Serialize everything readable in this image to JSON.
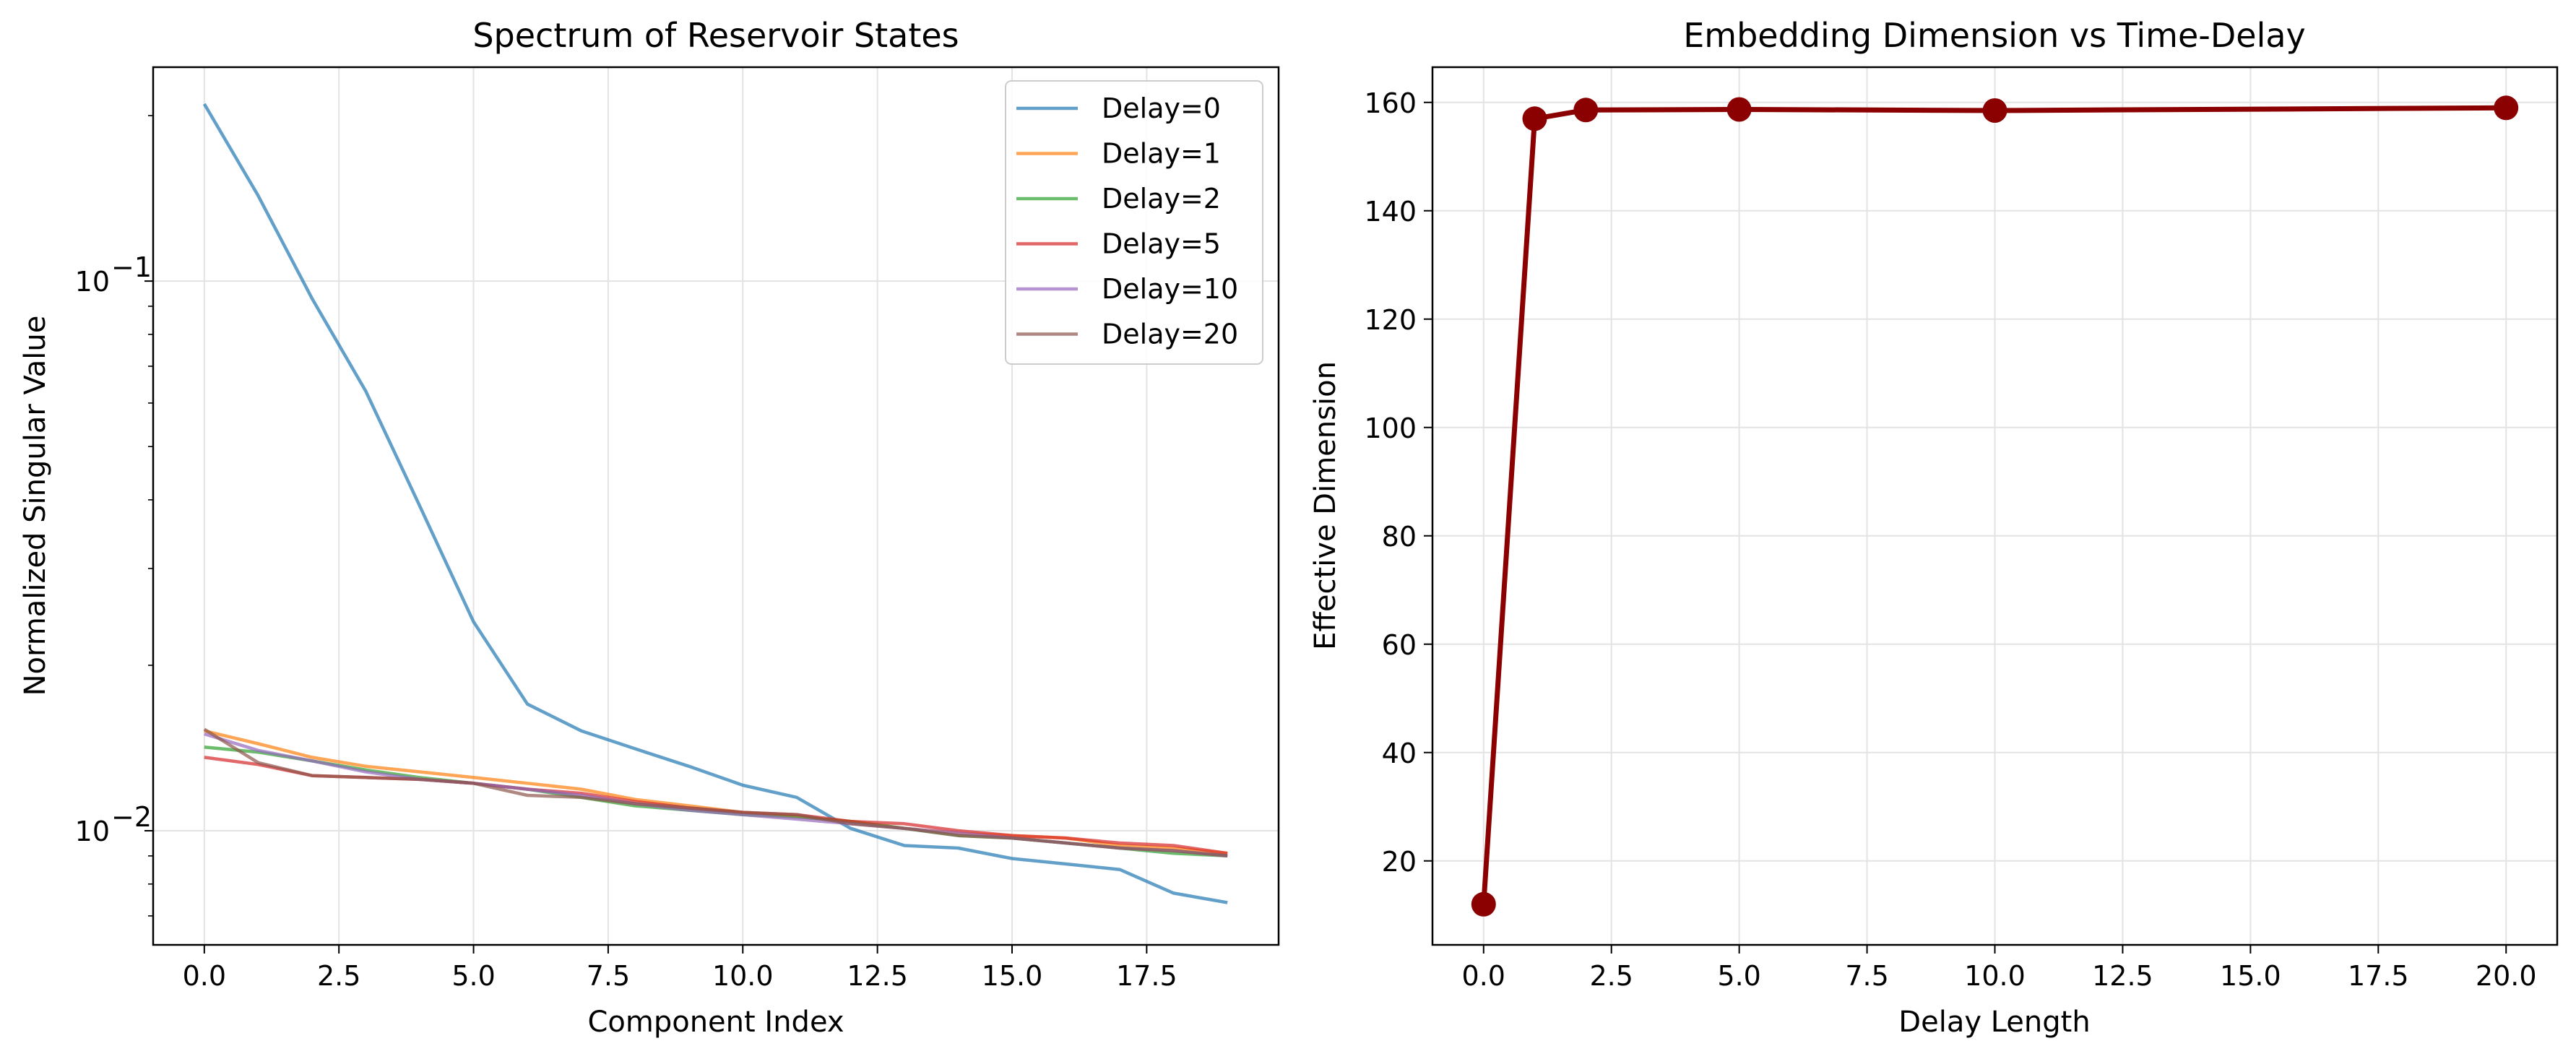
{
  "chart_data": [
    {
      "type": "line",
      "title": "Spectrum of Reservoir States",
      "xlabel": "Component Index",
      "ylabel": "Normalized Singular Value",
      "yscale": "log",
      "xlim": [
        -0.95,
        19.95
      ],
      "ylim": [
        0.0062,
        0.245
      ],
      "xticks": [
        0.0,
        2.5,
        5.0,
        7.5,
        10.0,
        12.5,
        15.0,
        17.5
      ],
      "xtick_labels": [
        "0.0",
        "2.5",
        "5.0",
        "7.5",
        "10.0",
        "12.5",
        "15.0",
        "17.5"
      ],
      "yticks_major": [
        0.01,
        0.1
      ],
      "ytick_labels": [
        "10",
        "10"
      ],
      "ytick_exponents": [
        "−2",
        "−1"
      ],
      "grid": true,
      "legend_position": "top-right",
      "x": [
        0,
        1,
        2,
        3,
        4,
        5,
        6,
        7,
        8,
        9,
        10,
        11,
        12,
        13,
        14,
        15,
        16,
        17,
        18,
        19
      ],
      "series": [
        {
          "name": "Delay=0",
          "color": "#1f77b4",
          "values": [
            0.21,
            0.143,
            0.093,
            0.063,
            0.039,
            0.024,
            0.017,
            0.0152,
            0.0141,
            0.0131,
            0.0121,
            0.0115,
            0.0101,
            0.0094,
            0.0093,
            0.0089,
            0.0087,
            0.0085,
            0.0077,
            0.0074
          ]
        },
        {
          "name": "Delay=1",
          "color": "#ff7f0e",
          "values": [
            0.0152,
            0.0144,
            0.0136,
            0.0131,
            0.0128,
            0.0125,
            0.0122,
            0.0119,
            0.0114,
            0.0111,
            0.0108,
            0.0106,
            0.0104,
            0.0101,
            0.0099,
            0.0098,
            0.0097,
            0.0094,
            0.0093,
            0.0091
          ]
        },
        {
          "name": "Delay=2",
          "color": "#2ca02c",
          "values": [
            0.0142,
            0.0139,
            0.0134,
            0.0129,
            0.0125,
            0.0122,
            0.0119,
            0.0115,
            0.0111,
            0.0109,
            0.0107,
            0.0106,
            0.0104,
            0.0101,
            0.0098,
            0.0097,
            0.0095,
            0.0093,
            0.0091,
            0.009
          ]
        },
        {
          "name": "Delay=5",
          "color": "#d62728",
          "values": [
            0.0136,
            0.0132,
            0.0126,
            0.0125,
            0.0124,
            0.0122,
            0.0119,
            0.0117,
            0.0113,
            0.011,
            0.0108,
            0.0107,
            0.0104,
            0.0103,
            0.01,
            0.0098,
            0.0097,
            0.0095,
            0.0094,
            0.0091
          ]
        },
        {
          "name": "Delay=10",
          "color": "#9467bd",
          "values": [
            0.015,
            0.014,
            0.0134,
            0.0128,
            0.0124,
            0.0122,
            0.0119,
            0.0116,
            0.0112,
            0.0109,
            0.0107,
            0.0105,
            0.0103,
            0.0101,
            0.0099,
            0.0097,
            0.0095,
            0.0093,
            0.0092,
            0.009
          ]
        },
        {
          "name": "Delay=20",
          "color": "#8c564b",
          "values": [
            0.0153,
            0.0133,
            0.0126,
            0.0125,
            0.0124,
            0.0122,
            0.0116,
            0.0115,
            0.0112,
            0.011,
            0.0108,
            0.0107,
            0.0103,
            0.0101,
            0.0098,
            0.0097,
            0.0095,
            0.0093,
            0.0092,
            0.009
          ]
        }
      ]
    },
    {
      "type": "line",
      "title": "Embedding Dimension vs Time-Delay",
      "xlabel": "Delay Length",
      "ylabel": "Effective Dimension",
      "xlim": [
        -1.0,
        21.0
      ],
      "ylim": [
        4.5,
        166.5
      ],
      "xticks": [
        0.0,
        2.5,
        5.0,
        7.5,
        10.0,
        12.5,
        15.0,
        17.5,
        20.0
      ],
      "xtick_labels": [
        "0.0",
        "2.5",
        "5.0",
        "7.5",
        "10.0",
        "12.5",
        "15.0",
        "17.5",
        "20.0"
      ],
      "yticks": [
        20,
        40,
        60,
        80,
        100,
        120,
        140,
        160
      ],
      "ytick_labels": [
        "20",
        "40",
        "60",
        "80",
        "100",
        "120",
        "140",
        "160"
      ],
      "grid": true,
      "markers": true,
      "series": [
        {
          "color": "#8b0000",
          "x": [
            0,
            1,
            2,
            5,
            10,
            20
          ],
          "values": [
            12,
            157,
            158.6,
            158.7,
            158.5,
            159
          ]
        }
      ]
    }
  ]
}
